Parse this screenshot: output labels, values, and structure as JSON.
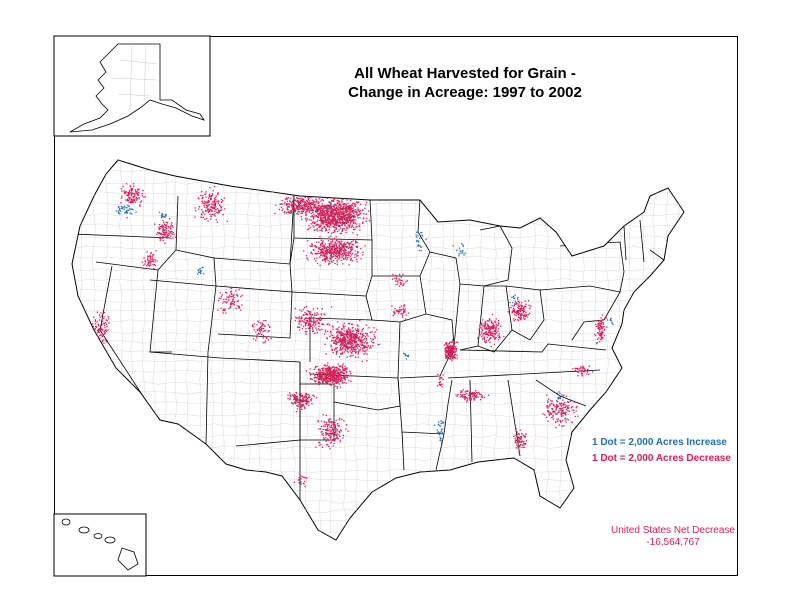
{
  "title": {
    "line1": "All Wheat Harvested for Grain -",
    "line2": "Change in Acreage:  1997 to 2002"
  },
  "legend": {
    "increase": {
      "label": "1 Dot = 2,000 Acres Increase",
      "color": "#1f6fb5"
    },
    "decrease": {
      "label": "1 Dot = 2,000 Acres Decrease",
      "color": "#d21f59"
    }
  },
  "summary": {
    "label": "United States Net Decrease",
    "value": "-16,564,767"
  },
  "colors": {
    "border": "#000000",
    "county_lines": "#bdbdbd",
    "increase": "#1f6fb5",
    "decrease": "#d21f59"
  }
}
